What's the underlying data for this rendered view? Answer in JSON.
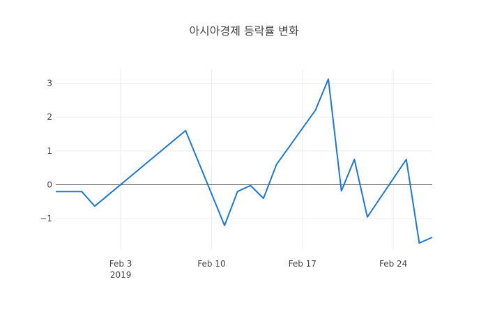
{
  "chart_data": {
    "type": "line",
    "title": "아시아경제 등락률 변화",
    "xlabel": "",
    "ylabel": "",
    "x_tick_labels": [
      {
        "date": "2019-02-03",
        "label": "Feb 3",
        "sublabel": "2019"
      },
      {
        "date": "2019-02-10",
        "label": "Feb 10",
        "sublabel": ""
      },
      {
        "date": "2019-02-17",
        "label": "Feb 17",
        "sublabel": ""
      },
      {
        "date": "2019-02-24",
        "label": "Feb 24",
        "sublabel": ""
      }
    ],
    "xlim": [
      "2019-01-29",
      "2019-02-27"
    ],
    "y_ticks": [
      -1,
      0,
      1,
      2,
      3
    ],
    "y_tick_labels": [
      "−1",
      "0",
      "1",
      "2",
      "3"
    ],
    "ylim": [
      -1.9,
      3.4
    ],
    "grid": true,
    "zero_line": true,
    "line_color": "#1f77d4",
    "series": [
      {
        "points": [
          {
            "x": "2019-01-29",
            "y": -0.2
          },
          {
            "x": "2019-01-31",
            "y": -0.2
          },
          {
            "x": "2019-02-01",
            "y": -0.63
          },
          {
            "x": "2019-02-08",
            "y": 1.6
          },
          {
            "x": "2019-02-11",
            "y": -1.2
          },
          {
            "x": "2019-02-12",
            "y": -0.2
          },
          {
            "x": "2019-02-13",
            "y": -0.02
          },
          {
            "x": "2019-02-14",
            "y": -0.4
          },
          {
            "x": "2019-02-15",
            "y": 0.6
          },
          {
            "x": "2019-02-18",
            "y": 2.2
          },
          {
            "x": "2019-02-19",
            "y": 3.12
          },
          {
            "x": "2019-02-20",
            "y": -0.18
          },
          {
            "x": "2019-02-21",
            "y": 0.75
          },
          {
            "x": "2019-02-22",
            "y": -0.95
          },
          {
            "x": "2019-02-25",
            "y": 0.75
          },
          {
            "x": "2019-02-26",
            "y": -1.72
          },
          {
            "x": "2019-02-27",
            "y": -1.55
          }
        ]
      }
    ]
  }
}
